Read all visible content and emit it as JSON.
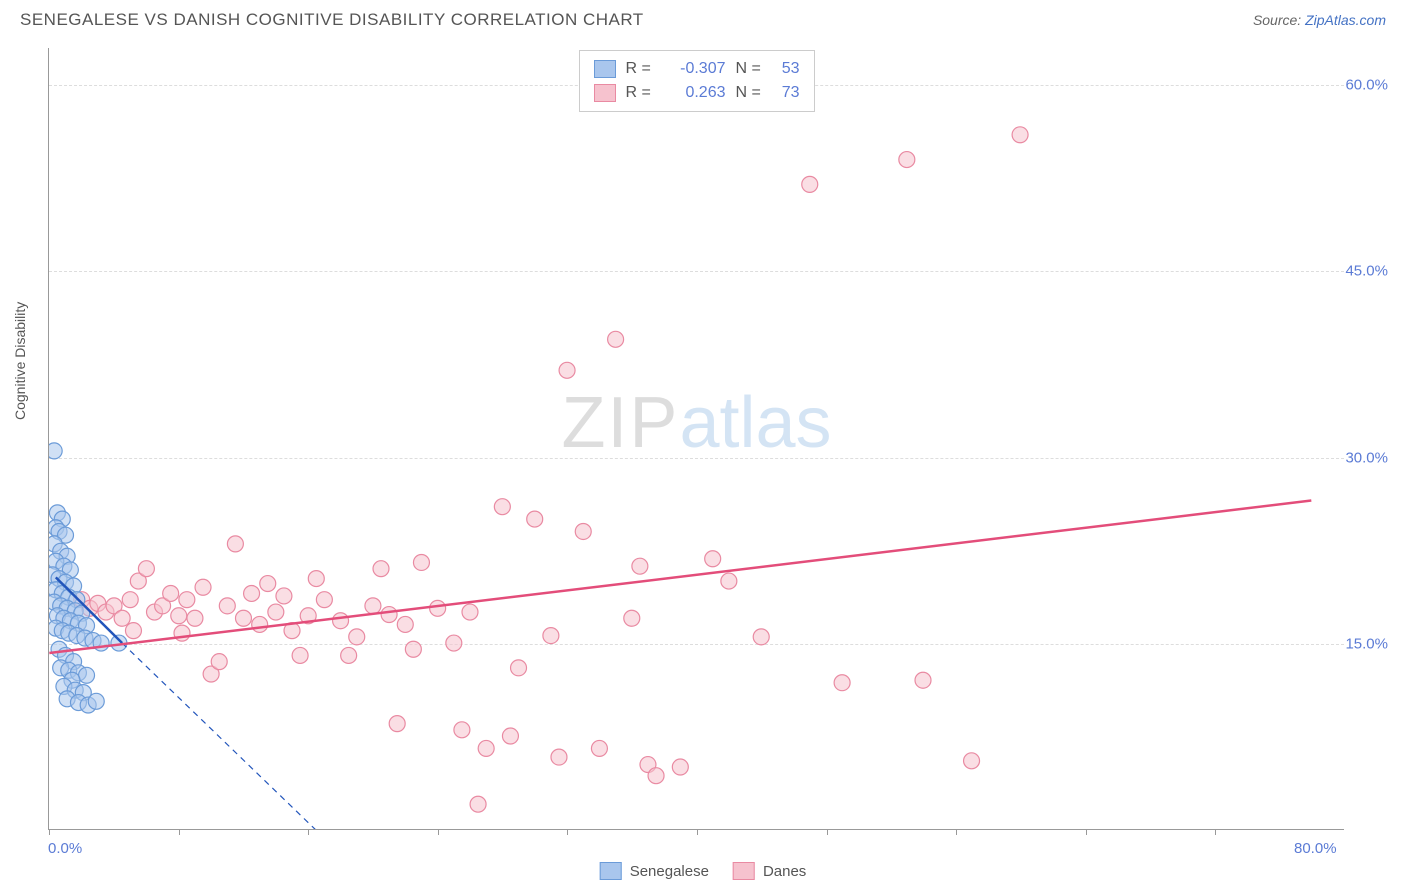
{
  "header": {
    "title": "SENEGALESE VS DANISH COGNITIVE DISABILITY CORRELATION CHART",
    "source_prefix": "Source: ",
    "source_link": "ZipAtlas.com"
  },
  "watermark": {
    "zip": "ZIP",
    "atlas": "atlas"
  },
  "chart": {
    "type": "scatter",
    "background_color": "#ffffff",
    "grid_color": "#dddddd",
    "axis_color": "#999999",
    "ylabel": "Cognitive Disability",
    "ylabel_color": "#555555",
    "tick_label_color": "#5b7bd5",
    "tick_label_fontsize": 15,
    "xlim": [
      0,
      80
    ],
    "ylim": [
      0,
      63
    ],
    "xtick_labels": {
      "0": "0.0%",
      "80": "80.0%"
    },
    "xtick_positions": [
      0,
      8,
      16,
      24,
      32,
      40,
      48,
      56,
      64,
      72
    ],
    "ytick_labels": {
      "15": "15.0%",
      "30": "30.0%",
      "45": "45.0%",
      "60": "60.0%"
    },
    "ytick_positions": [
      15,
      30,
      45,
      60
    ],
    "marker_radius": 8,
    "marker_opacity": 0.55,
    "trendline_width": 2.5,
    "series": {
      "senegalese": {
        "label": "Senegalese",
        "color_fill": "#a9c6ed",
        "color_stroke": "#6b9bd8",
        "trend_color": "#2255bb",
        "trend_dash_extend": true,
        "R": "-0.307",
        "N": "53",
        "trend_start": [
          0.4,
          20.3
        ],
        "trend_end": [
          4.5,
          15.0
        ],
        "dash_end": [
          18.0,
          -2.0
        ],
        "points": [
          [
            0.3,
            30.5
          ],
          [
            0.5,
            25.5
          ],
          [
            0.8,
            25.0
          ],
          [
            0.4,
            24.3
          ],
          [
            0.6,
            24.0
          ],
          [
            1.0,
            23.7
          ],
          [
            0.3,
            23.0
          ],
          [
            0.7,
            22.4
          ],
          [
            1.1,
            22.0
          ],
          [
            0.4,
            21.6
          ],
          [
            0.9,
            21.2
          ],
          [
            1.3,
            20.9
          ],
          [
            0.2,
            20.5
          ],
          [
            0.6,
            20.2
          ],
          [
            1.0,
            19.9
          ],
          [
            1.5,
            19.6
          ],
          [
            0.4,
            19.3
          ],
          [
            0.8,
            19.0
          ],
          [
            1.2,
            18.7
          ],
          [
            1.7,
            18.5
          ],
          [
            0.3,
            18.3
          ],
          [
            0.7,
            18.0
          ],
          [
            1.1,
            17.8
          ],
          [
            1.6,
            17.6
          ],
          [
            2.0,
            17.4
          ],
          [
            0.5,
            17.2
          ],
          [
            0.9,
            17.0
          ],
          [
            1.3,
            16.8
          ],
          [
            1.8,
            16.6
          ],
          [
            2.3,
            16.4
          ],
          [
            0.4,
            16.2
          ],
          [
            0.8,
            16.0
          ],
          [
            1.2,
            15.8
          ],
          [
            1.7,
            15.6
          ],
          [
            2.2,
            15.4
          ],
          [
            2.7,
            15.2
          ],
          [
            3.2,
            15.0
          ],
          [
            4.3,
            15.0
          ],
          [
            0.6,
            14.5
          ],
          [
            1.0,
            14.0
          ],
          [
            1.5,
            13.5
          ],
          [
            0.7,
            13.0
          ],
          [
            1.2,
            12.8
          ],
          [
            1.8,
            12.6
          ],
          [
            2.3,
            12.4
          ],
          [
            1.4,
            12.0
          ],
          [
            0.9,
            11.5
          ],
          [
            1.6,
            11.2
          ],
          [
            2.1,
            11.0
          ],
          [
            1.1,
            10.5
          ],
          [
            1.8,
            10.2
          ],
          [
            2.4,
            10.0
          ],
          [
            2.9,
            10.3
          ]
        ]
      },
      "danes": {
        "label": "Danes",
        "color_fill": "#f6c2ce",
        "color_stroke": "#e98aa2",
        "trend_color": "#e34d7a",
        "trend_dash_extend": false,
        "R": "0.263",
        "N": "73",
        "trend_start": [
          0,
          14.2
        ],
        "trend_end": [
          78,
          26.5
        ],
        "points": [
          [
            2.0,
            18.5
          ],
          [
            2.5,
            17.8
          ],
          [
            3.0,
            18.2
          ],
          [
            3.5,
            17.5
          ],
          [
            4.0,
            18.0
          ],
          [
            4.5,
            17.0
          ],
          [
            5.0,
            18.5
          ],
          [
            5.2,
            16.0
          ],
          [
            5.5,
            20.0
          ],
          [
            6.0,
            21.0
          ],
          [
            6.5,
            17.5
          ],
          [
            7.0,
            18.0
          ],
          [
            7.5,
            19.0
          ],
          [
            8.0,
            17.2
          ],
          [
            8.5,
            18.5
          ],
          [
            9.0,
            17.0
          ],
          [
            9.5,
            19.5
          ],
          [
            10.0,
            12.5
          ],
          [
            10.5,
            13.5
          ],
          [
            11.0,
            18.0
          ],
          [
            12.0,
            17.0
          ],
          [
            12.5,
            19.0
          ],
          [
            13.0,
            16.5
          ],
          [
            14.0,
            17.5
          ],
          [
            14.5,
            18.8
          ],
          [
            15.0,
            16.0
          ],
          [
            15.5,
            14.0
          ],
          [
            16.0,
            17.2
          ],
          [
            17.0,
            18.5
          ],
          [
            18.0,
            16.8
          ],
          [
            19.0,
            15.5
          ],
          [
            20.0,
            18.0
          ],
          [
            20.5,
            21.0
          ],
          [
            21.0,
            17.3
          ],
          [
            21.5,
            8.5
          ],
          [
            22.0,
            16.5
          ],
          [
            23.0,
            21.5
          ],
          [
            24.0,
            17.8
          ],
          [
            25.0,
            15.0
          ],
          [
            25.5,
            8.0
          ],
          [
            26.0,
            17.5
          ],
          [
            26.5,
            2.0
          ],
          [
            27.0,
            6.5
          ],
          [
            28.0,
            26.0
          ],
          [
            28.5,
            7.5
          ],
          [
            29.0,
            13.0
          ],
          [
            30.0,
            25.0
          ],
          [
            31.0,
            15.6
          ],
          [
            31.5,
            5.8
          ],
          [
            32.0,
            37.0
          ],
          [
            33.0,
            24.0
          ],
          [
            34.0,
            6.5
          ],
          [
            35.0,
            39.5
          ],
          [
            36.0,
            17.0
          ],
          [
            36.5,
            21.2
          ],
          [
            37.0,
            5.2
          ],
          [
            37.5,
            4.3
          ],
          [
            39.0,
            5.0
          ],
          [
            41.0,
            21.8
          ],
          [
            42.0,
            20.0
          ],
          [
            44.0,
            15.5
          ],
          [
            47.0,
            52.0
          ],
          [
            49.0,
            11.8
          ],
          [
            53.0,
            54.0
          ],
          [
            54.0,
            12.0
          ],
          [
            57.0,
            5.5
          ],
          [
            60.0,
            56.0
          ],
          [
            11.5,
            23.0
          ],
          [
            13.5,
            19.8
          ],
          [
            16.5,
            20.2
          ],
          [
            18.5,
            14.0
          ],
          [
            22.5,
            14.5
          ],
          [
            8.2,
            15.8
          ]
        ]
      }
    },
    "legend_stats": {
      "rows": [
        {
          "swatch_fill": "#a9c6ed",
          "swatch_stroke": "#6b9bd8",
          "rlabel": "R =",
          "rval": "-0.307",
          "nlabel": "N =",
          "nval": "53"
        },
        {
          "swatch_fill": "#f6c2ce",
          "swatch_stroke": "#e98aa2",
          "rlabel": "R =",
          "rval": "0.263",
          "nlabel": "N =",
          "nval": "73"
        }
      ]
    },
    "bottom_legend": [
      {
        "swatch_fill": "#a9c6ed",
        "swatch_stroke": "#6b9bd8",
        "label": "Senegalese"
      },
      {
        "swatch_fill": "#f6c2ce",
        "swatch_stroke": "#e98aa2",
        "label": "Danes"
      }
    ]
  }
}
